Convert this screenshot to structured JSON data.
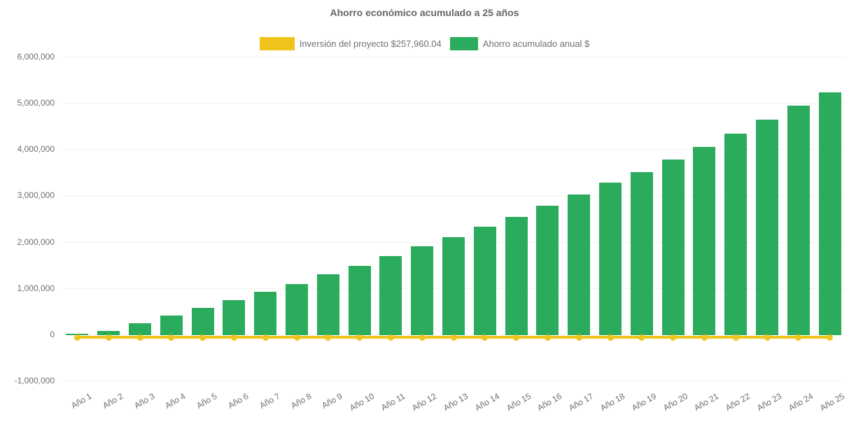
{
  "title": "Ahorro económico acumulado a 25 años",
  "colors": {
    "investment": "#F0C41B",
    "savings": "#2BAB5C",
    "title": "#666666",
    "legend_label": "#707070",
    "axis_label": "#6E6E6E",
    "gridline": "#F2F2F2",
    "background": "#FFFFFF"
  },
  "legend": {
    "items": [
      {
        "label": "Inversión del proyecto $257,960.04",
        "series": "investment"
      },
      {
        "label": "Ahorro acumulado anual $",
        "series": "savings"
      }
    ]
  },
  "chart_data": {
    "type": "bar",
    "title": "Ahorro económico acumulado a 25 años",
    "categories": [
      "Año 1",
      "Año 2",
      "Año 3",
      "Año 4",
      "Año 5",
      "Año 6",
      "Año 7",
      "Año 8",
      "Año 9",
      "Año 10",
      "Año 11",
      "Año 12",
      "Año 13",
      "Año 14",
      "Año 15",
      "Año 16",
      "Año 17",
      "Año 18",
      "Año 19",
      "Año 20",
      "Año 21",
      "Año 22",
      "Año 23",
      "Año 24",
      "Año 25"
    ],
    "series": [
      {
        "name": "Ahorro acumulado anual $",
        "type": "bar",
        "color": "#2BAB5C",
        "values": [
          15000,
          95000,
          250000,
          420000,
          590000,
          760000,
          935000,
          1100000,
          1310000,
          1500000,
          1705000,
          1920000,
          2120000,
          2340000,
          2560000,
          2790000,
          3045000,
          3295000,
          3530000,
          3800000,
          4070000,
          4350000,
          4655000,
          4960000,
          5245000
        ]
      },
      {
        "name": "Inversión del proyecto $257,960.04",
        "type": "line",
        "color": "#F0C41B",
        "marker": "circle",
        "values": [
          0,
          0,
          0,
          0,
          0,
          0,
          0,
          0,
          0,
          0,
          0,
          0,
          0,
          0,
          0,
          0,
          0,
          0,
          0,
          0,
          0,
          0,
          0,
          0,
          0
        ]
      }
    ],
    "xlabel": "",
    "ylabel": "",
    "ylim": [
      -1000000,
      6000000
    ],
    "yticks": [
      6000000,
      5000000,
      4000000,
      3000000,
      2000000,
      1000000,
      0,
      -1000000
    ],
    "ytick_labels": [
      "6,000,000",
      "5,000,000",
      "4,000,000",
      "3,000,000",
      "2,000,000",
      "1,000,000",
      "0",
      "-1,000,000"
    ],
    "grid": false,
    "legend_position": "top",
    "x_tick_rotation": -30
  }
}
